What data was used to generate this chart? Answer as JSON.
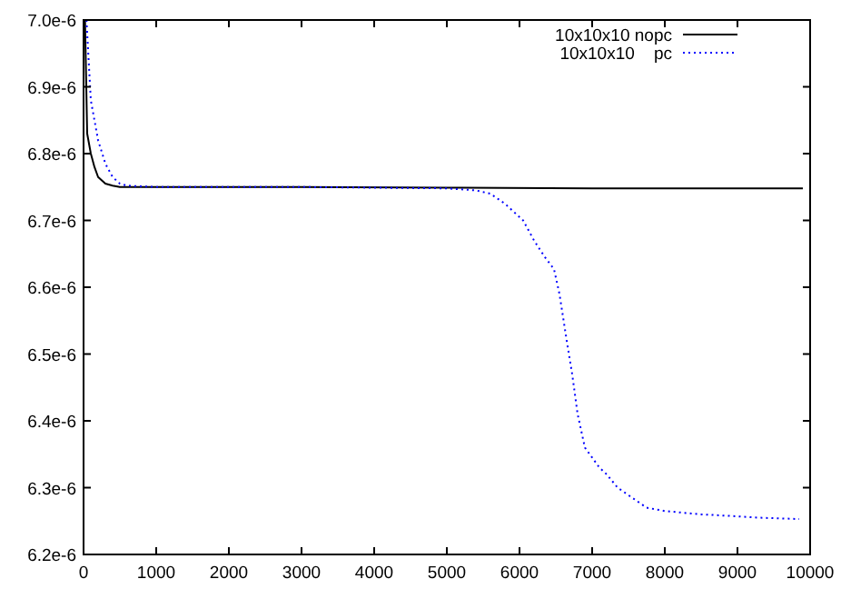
{
  "chart_data": {
    "type": "line",
    "xlim": [
      0,
      10000
    ],
    "ylim": [
      6.2e-06,
      7e-06
    ],
    "xticks": [
      0,
      1000,
      2000,
      3000,
      4000,
      5000,
      6000,
      7000,
      8000,
      9000,
      10000
    ],
    "yticks": [
      {
        "value": 6.2e-06,
        "label": "6.2e-6"
      },
      {
        "value": 6.3e-06,
        "label": "6.3e-6"
      },
      {
        "value": 6.4e-06,
        "label": "6.4e-6"
      },
      {
        "value": 6.5e-06,
        "label": "6.5e-6"
      },
      {
        "value": 6.6e-06,
        "label": "6.6e-6"
      },
      {
        "value": 6.7e-06,
        "label": "6.7e-6"
      },
      {
        "value": 6.8e-06,
        "label": "6.8e-6"
      },
      {
        "value": 6.9e-06,
        "label": "6.9e-6"
      },
      {
        "value": 7e-06,
        "label": "7.0e-6"
      }
    ],
    "legend": "top right",
    "grid": false,
    "series": [
      {
        "name": "10x10x10 nopc",
        "color": "#000000",
        "line_style": "solid",
        "x": [
          20,
          50,
          100,
          150,
          200,
          300,
          400,
          500,
          700,
          1000,
          3000,
          5000,
          7000,
          9900
        ],
        "values": [
          7e-06,
          6.83e-06,
          6.8e-06,
          6.78e-06,
          6.765e-06,
          6.755e-06,
          6.752e-06,
          6.75e-06,
          6.75e-06,
          6.75e-06,
          6.75e-06,
          6.749e-06,
          6.748e-06,
          6.748e-06
        ]
      },
      {
        "name": "10x10x10    pc",
        "color": "#0000ff",
        "line_style": "dotted",
        "x": [
          40,
          100,
          200,
          300,
          400,
          500,
          600,
          1000,
          3000,
          5000,
          5400,
          5600,
          5800,
          6050,
          6200,
          6350,
          6475,
          6550,
          6650,
          6725,
          6800,
          6900,
          7000,
          7100,
          7200,
          7350,
          7550,
          7750,
          8000,
          8500,
          8850,
          9300,
          9850
        ],
        "values": [
          7e-06,
          6.88e-06,
          6.82e-06,
          6.785e-06,
          6.765e-06,
          6.755e-06,
          6.752e-06,
          6.75e-06,
          6.75e-06,
          6.748e-06,
          6.745e-06,
          6.74e-06,
          6.725e-06,
          6.7e-06,
          6.67e-06,
          6.645e-06,
          6.627e-06,
          6.59e-06,
          6.52e-06,
          6.47e-06,
          6.41e-06,
          6.36e-06,
          6.345e-06,
          6.33e-06,
          6.32e-06,
          6.3e-06,
          6.285e-06,
          6.27e-06,
          6.265e-06,
          6.26e-06,
          6.258e-06,
          6.255e-06,
          6.253e-06
        ]
      }
    ]
  }
}
